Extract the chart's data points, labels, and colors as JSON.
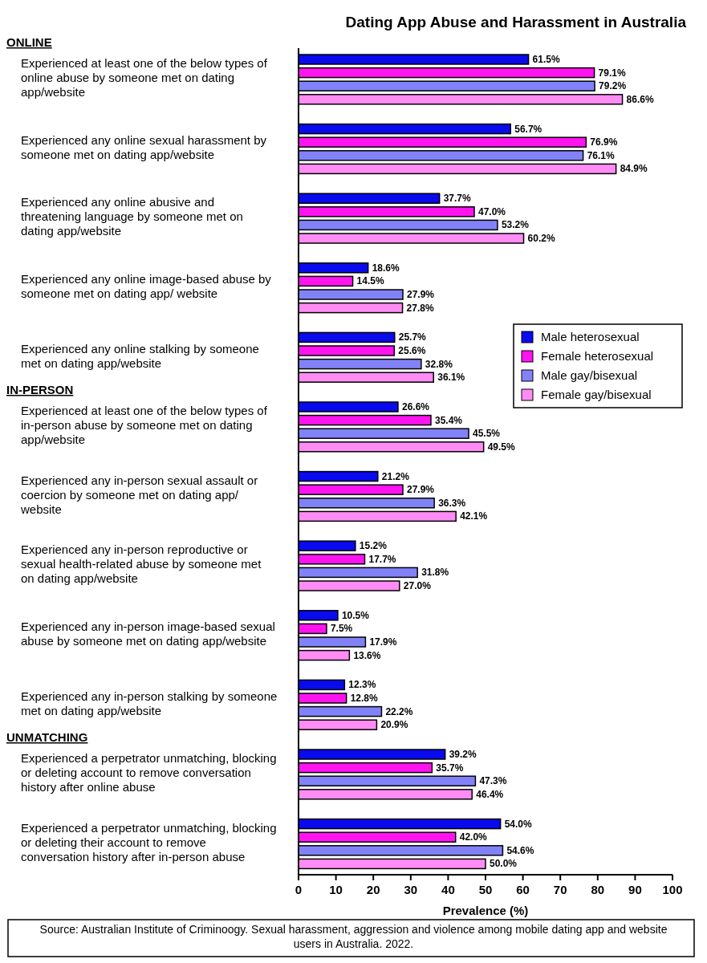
{
  "chart_data": {
    "type": "bar",
    "orientation": "horizontal",
    "title": "Dating App Abuse and Harassment in Australia",
    "xlabel": "Prevalence (%)",
    "categories": [
      "Experienced at least one of the below types of online abuse by someone met on dating app/website",
      "Experienced any online sexual harassment by someone met on dating app/website",
      "Experienced any online abusive and threatening language by someone met on dating app/website",
      "Experienced any online image-based abuse by someone met on dating app/ website",
      "Experienced any online stalking by someone met on dating app/website",
      "Experienced at least one of the below types of in-person abuse by someone met on dating app/website",
      "Experienced any in-person sexual assault or coercion by someone met on dating app/ website",
      "Experienced any in-person reproductive or sexual health-related abuse by someone met on dating app/website",
      "Experienced any in-person image-based sexual abuse by someone met on dating app/website",
      "Experienced any in-person stalking by someone met on dating app/website",
      "Experienced a perpetrator unmatching, blocking or deleting account to remove conversation history after online abuse",
      "Experienced a perpetrator unmatching, blocking or deleting their account to remove conversation history after in-person abuse"
    ],
    "series": [
      {
        "name": "Male heterosexual",
        "color": "#0a0aee",
        "values": [
          61.5,
          56.7,
          37.7,
          18.6,
          25.7,
          26.6,
          21.2,
          15.2,
          10.5,
          12.3,
          39.2,
          54.0
        ],
        "value_labels": [
          "61.5%",
          "56.7%",
          "37.7%",
          "18.6%",
          "25.7%",
          "26.6%",
          "21.2%",
          "15.2%",
          "10.5%",
          "12.3%",
          "39.2%",
          "54.0%"
        ]
      },
      {
        "name": "Female heterosexual",
        "color": "#ff14f0",
        "values": [
          79.1,
          76.9,
          47.0,
          14.5,
          25.6,
          35.4,
          27.9,
          17.7,
          7.5,
          12.8,
          35.7,
          42.0
        ],
        "value_labels": [
          "79.1%",
          "76.9%",
          "47.0%",
          "14.5%",
          "25.6%",
          "35.4%",
          "27.9%",
          "17.7%",
          "7.5%",
          "12.8%",
          "35.7%",
          "42.0%"
        ]
      },
      {
        "name": "Male gay/bisexual",
        "color": "#8282f8",
        "values": [
          79.2,
          76.1,
          53.2,
          27.9,
          32.8,
          45.5,
          36.3,
          31.8,
          17.9,
          22.2,
          47.3,
          54.6
        ],
        "value_labels": [
          "79.2%",
          "76.1%",
          "53.2%",
          "27.9%",
          "32.8%",
          "45.5%",
          "36.3%",
          "31.8%",
          "17.9%",
          "22.2%",
          "47.3%",
          "54.6%"
        ]
      },
      {
        "name": "Female gay/bisexual",
        "color": "#ff8cf4",
        "values": [
          86.6,
          84.9,
          60.2,
          27.8,
          36.1,
          49.5,
          42.1,
          27.0,
          13.6,
          20.9,
          46.4,
          50.0
        ],
        "value_labels": [
          "86.6%",
          "84.9%",
          "60.2%",
          "27.8%",
          "36.1%",
          "49.5%",
          "42.1%",
          "27.0%",
          "13.6%",
          "20.9%",
          "46.4%",
          "50.0%"
        ]
      }
    ],
    "xlim": [
      0,
      100
    ],
    "xticks": [
      0,
      10,
      20,
      30,
      40,
      50,
      60,
      70,
      80,
      90,
      100
    ],
    "grid": false,
    "legend": "right",
    "annotations": [
      "ONLINE",
      "IN-PERSON",
      "UNMATCHING",
      "Source: Australian Institute of Criminoogy. Sexual harassment, aggression and violence among mobile dating app and website users in Australia. 2022."
    ]
  }
}
